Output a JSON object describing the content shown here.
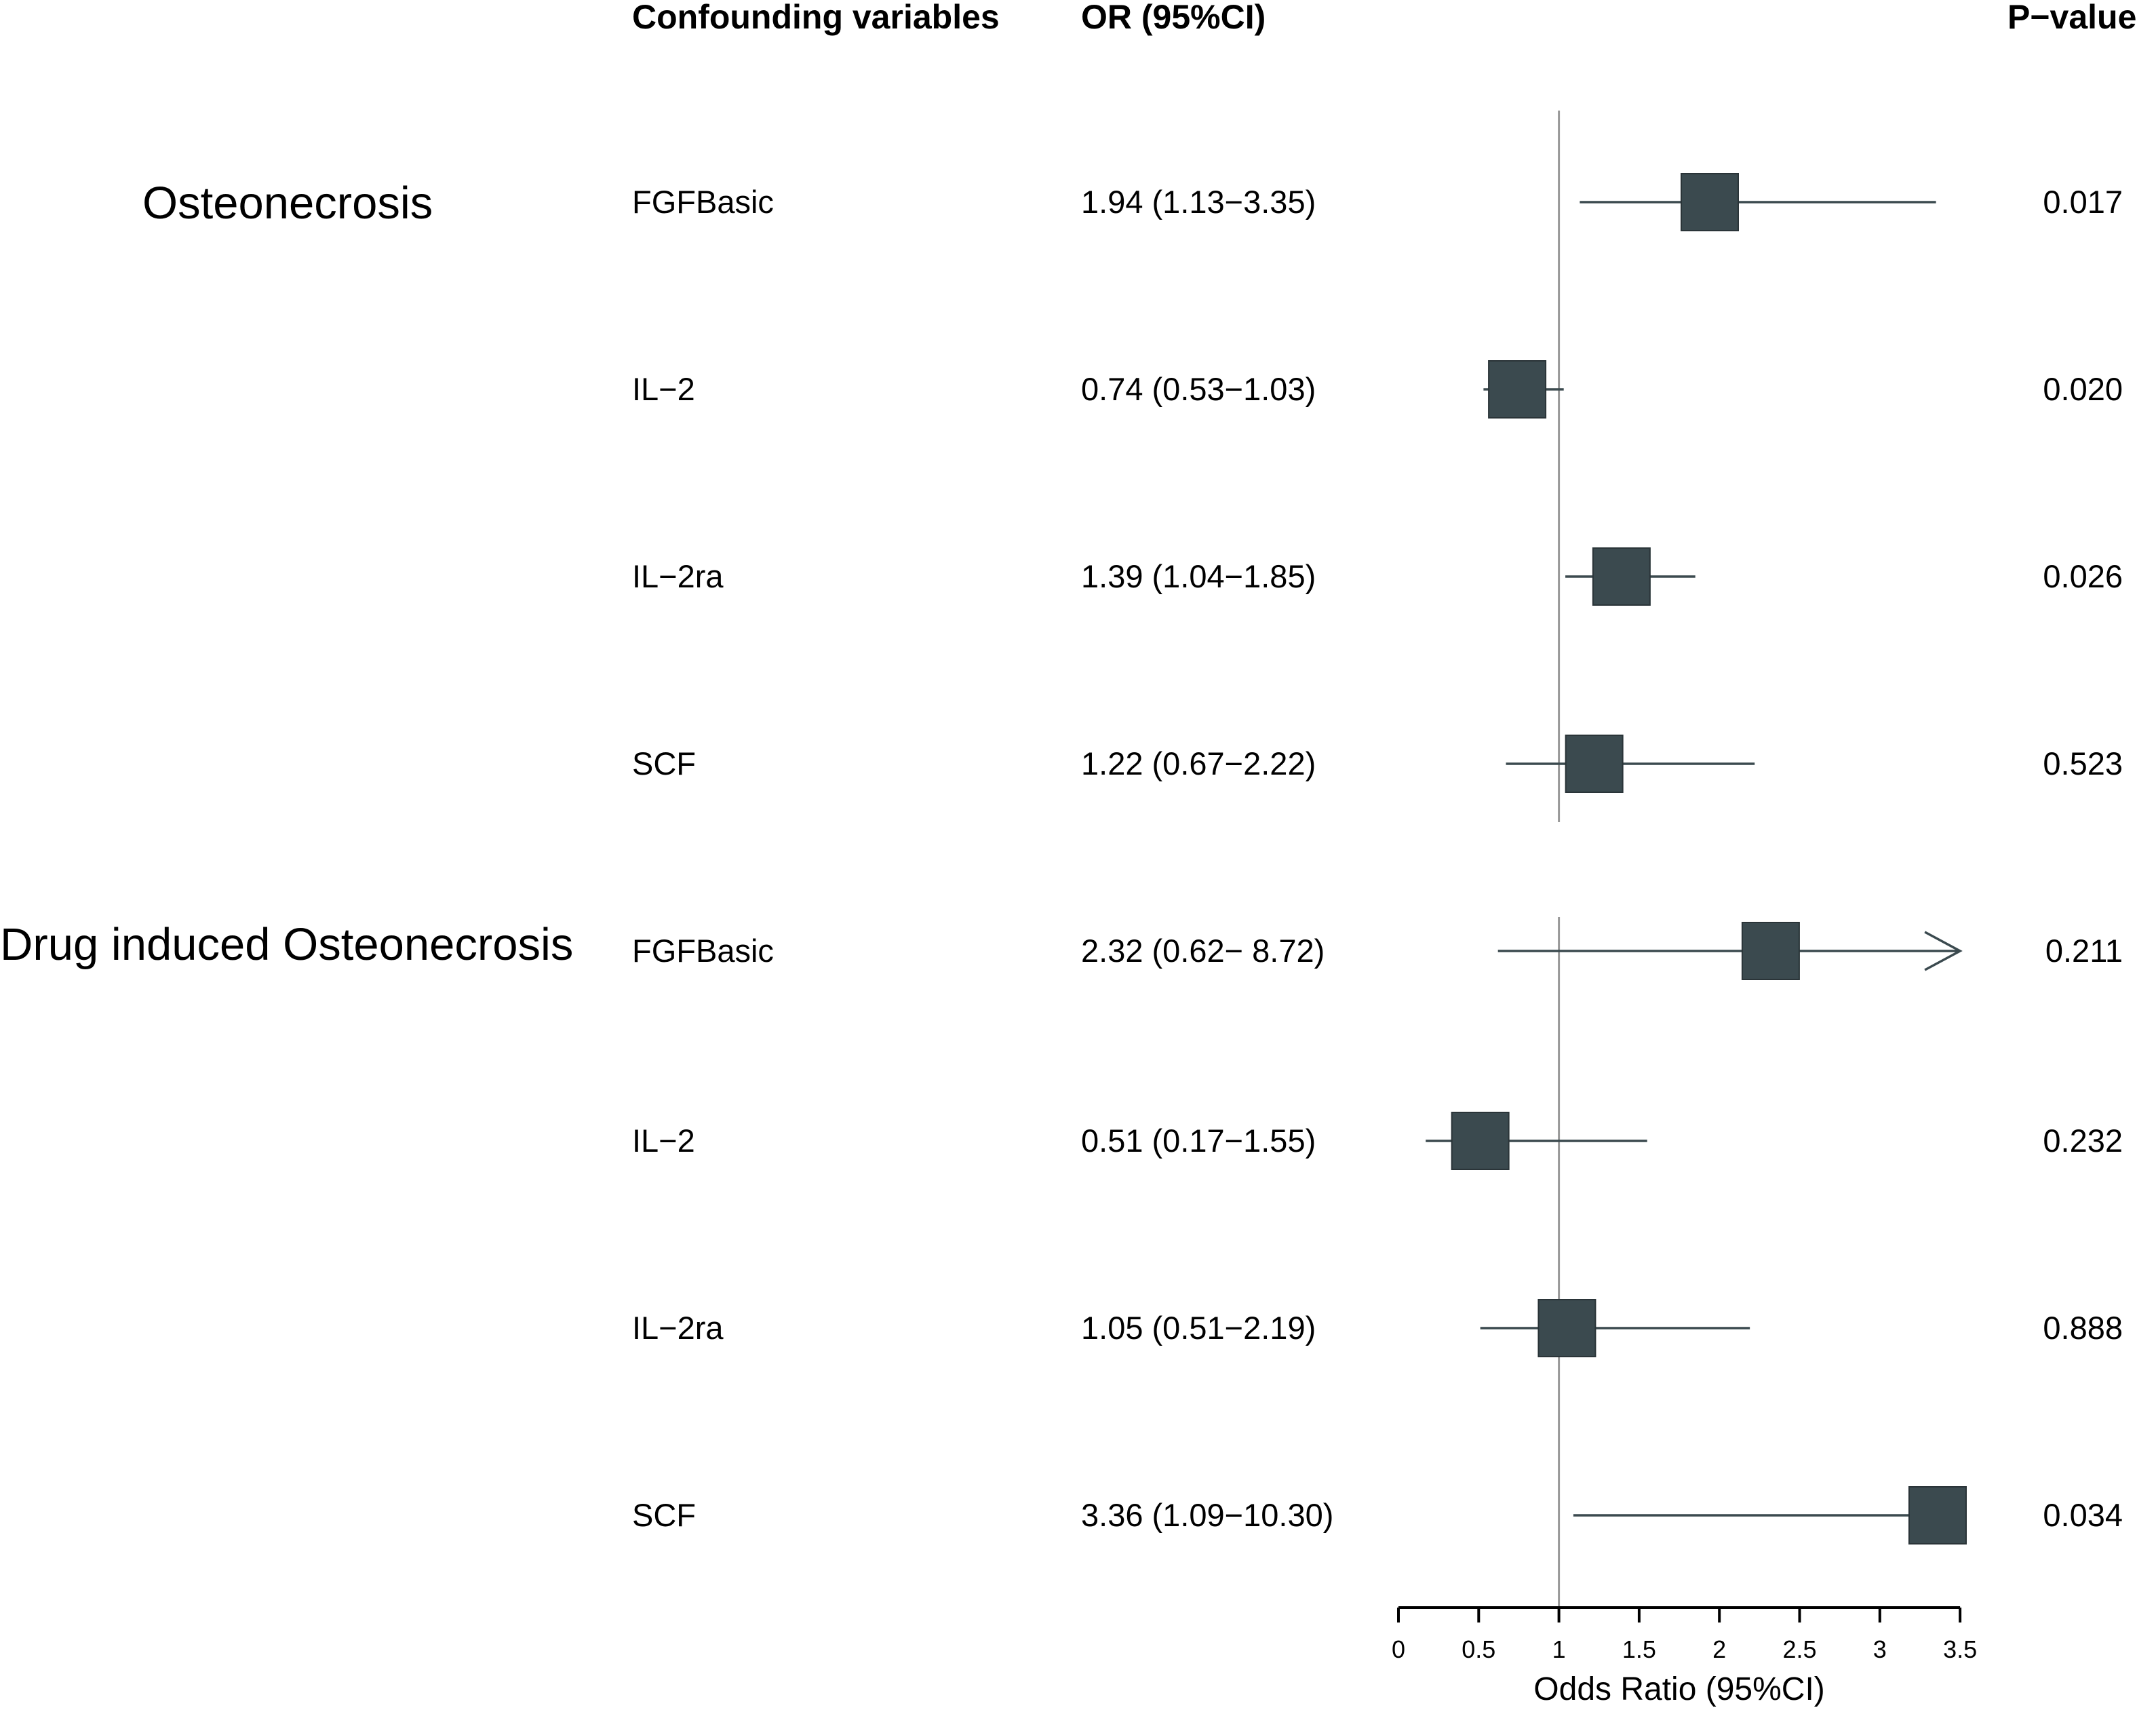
{
  "headers": {
    "variables": "Confounding variables",
    "or_ci": "OR (95%CI)",
    "pvalue": "P−value"
  },
  "colors": {
    "box": "#3b4a4f",
    "refline": "#999999"
  },
  "chart_data": {
    "type": "forest",
    "xlabel": "Odds Ratio (95%CI)",
    "xlim": [
      0,
      3.5
    ],
    "xticks": [
      0,
      0.5,
      1,
      1.5,
      2,
      2.5,
      3,
      3.5
    ],
    "xtick_labels": [
      "0",
      "0.5",
      "1",
      "1.5",
      "2",
      "2.5",
      "3",
      "3.5"
    ],
    "reference_value": 1,
    "groups": [
      {
        "name": "Osteonecrosis",
        "rows": [
          {
            "variable": "FGFBasic",
            "or": 1.94,
            "lo": 1.13,
            "hi": 3.35,
            "label": "1.94 (1.13−3.35)",
            "p": "0.017"
          },
          {
            "variable": "IL−2",
            "or": 0.74,
            "lo": 0.53,
            "hi": 1.03,
            "label": "0.74 (0.53−1.03)",
            "p": "0.020"
          },
          {
            "variable": "IL−2ra",
            "or": 1.39,
            "lo": 1.04,
            "hi": 1.85,
            "label": "1.39 (1.04−1.85)",
            "p": "0.026"
          },
          {
            "variable": "SCF",
            "or": 1.22,
            "lo": 0.67,
            "hi": 2.22,
            "label": "1.22 (0.67−2.22)",
            "p": "0.523"
          }
        ]
      },
      {
        "name": "Drug induced Osteonecrosis",
        "rows": [
          {
            "variable": "FGFBasic",
            "or": 2.32,
            "lo": 0.62,
            "hi": 8.72,
            "label": "2.32 (0.62− 8.72)",
            "p": "0.211"
          },
          {
            "variable": "IL−2",
            "or": 0.51,
            "lo": 0.17,
            "hi": 1.55,
            "label": "0.51 (0.17−1.55)",
            "p": "0.232"
          },
          {
            "variable": "IL−2ra",
            "or": 1.05,
            "lo": 0.51,
            "hi": 2.19,
            "label": "1.05 (0.51−2.19)",
            "p": "0.888"
          },
          {
            "variable": "SCF",
            "or": 3.36,
            "lo": 1.09,
            "hi": 10.3,
            "label": "3.36 (1.09−10.30)",
            "p": "0.034"
          }
        ]
      }
    ]
  }
}
